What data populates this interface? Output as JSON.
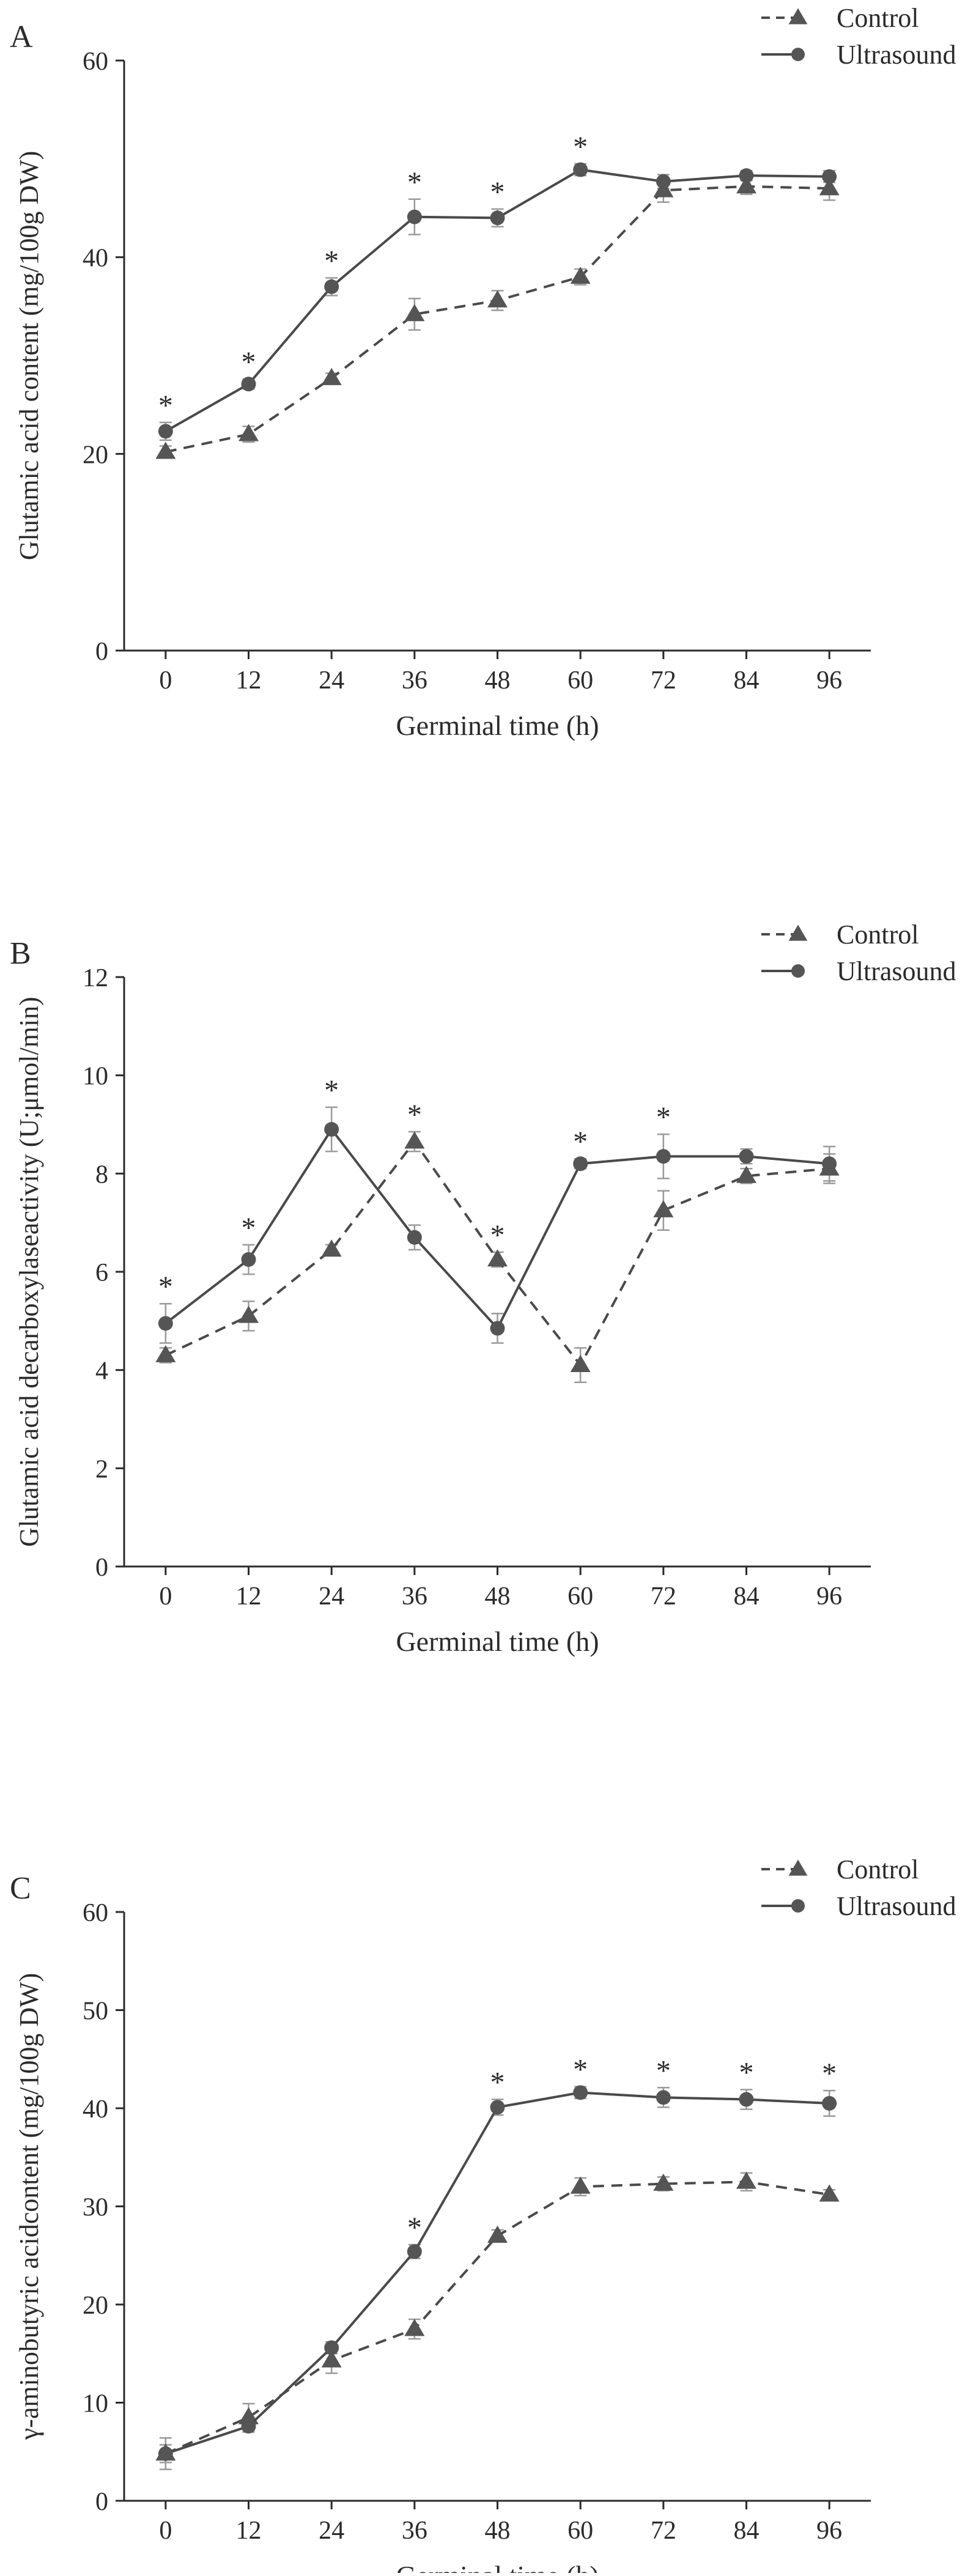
{
  "chart_data": [
    {
      "type": "line",
      "panel_label": "A",
      "xlabel": "Germinal time (h)",
      "ylabel": "Glutamic acid content (mg/100g DW)",
      "x": [
        0,
        12,
        24,
        36,
        48,
        60,
        72,
        84,
        96
      ],
      "x_tick_labels": [
        "0",
        "12",
        "24",
        "36",
        "48",
        "60",
        "72",
        "84",
        "96"
      ],
      "ylim": [
        0,
        60
      ],
      "y_ticks": [
        0,
        20,
        40,
        60
      ],
      "y_tick_labels": [
        "0",
        "20",
        "40",
        "60"
      ],
      "legend": [
        "Control",
        "Ultrasound"
      ],
      "legend_position": "top-right",
      "series": [
        {
          "name": "Control",
          "marker": "triangle",
          "line_style": "dashed",
          "values": [
            20.2,
            22.0,
            27.7,
            34.2,
            35.6,
            38.0,
            46.8,
            47.2,
            47.0
          ],
          "errors": [
            0.6,
            0.8,
            0.5,
            1.6,
            1.0,
            0.8,
            1.2,
            0.8,
            1.2
          ]
        },
        {
          "name": "Ultrasound",
          "marker": "circle",
          "line_style": "solid",
          "values": [
            22.3,
            27.1,
            37.0,
            44.1,
            44.0,
            48.9,
            47.7,
            48.3,
            48.2
          ],
          "errors": [
            0.9,
            0.5,
            0.9,
            1.8,
            0.9,
            0.6,
            0.7,
            0.5,
            0.6
          ]
        }
      ],
      "significance": [
        "*",
        "*",
        "*",
        "*",
        "*",
        "*",
        "",
        "",
        ""
      ]
    },
    {
      "type": "line",
      "panel_label": "B",
      "xlabel": "Germinal time (h)",
      "ylabel": "Glutamic acid decarboxylaseactivity (U;μmol/min)",
      "x": [
        0,
        12,
        24,
        36,
        48,
        60,
        72,
        84,
        96
      ],
      "x_tick_labels": [
        "0",
        "12",
        "24",
        "36",
        "48",
        "60",
        "72",
        "84",
        "96"
      ],
      "ylim": [
        0,
        12
      ],
      "y_ticks": [
        0,
        2,
        4,
        6,
        8,
        10,
        12
      ],
      "y_tick_labels": [
        "0",
        "2",
        "4",
        "6",
        "8",
        "10",
        "12"
      ],
      "legend": [
        "Control",
        "Ultrasound"
      ],
      "legend_position": "top-right",
      "series": [
        {
          "name": "Control",
          "marker": "triangle",
          "line_style": "dashed",
          "values": [
            4.3,
            5.1,
            6.45,
            8.65,
            6.25,
            4.1,
            7.25,
            7.95,
            8.1
          ],
          "errors": [
            0.15,
            0.3,
            0.1,
            0.2,
            0.15,
            0.35,
            0.4,
            0.15,
            0.3
          ]
        },
        {
          "name": "Ultrasound",
          "marker": "circle",
          "line_style": "solid",
          "values": [
            4.95,
            6.25,
            8.9,
            6.7,
            4.85,
            8.2,
            8.35,
            8.35,
            8.2
          ],
          "errors": [
            0.4,
            0.3,
            0.45,
            0.25,
            0.3,
            0.1,
            0.45,
            0.15,
            0.35
          ]
        }
      ],
      "significance": [
        "*",
        "*",
        "*",
        "*",
        "*",
        "*",
        "*",
        "",
        ""
      ]
    },
    {
      "type": "line",
      "panel_label": "C",
      "xlabel": "Germinal time (h)",
      "ylabel": "γ-aminobutyric acidcontent (mg/100g DW)",
      "x": [
        0,
        12,
        24,
        36,
        48,
        60,
        72,
        84,
        96
      ],
      "x_tick_labels": [
        "0",
        "12",
        "24",
        "36",
        "48",
        "60",
        "72",
        "84",
        "96"
      ],
      "ylim": [
        0,
        60
      ],
      "y_ticks": [
        0,
        10,
        20,
        30,
        40,
        50,
        60
      ],
      "y_tick_labels": [
        "0",
        "10",
        "20",
        "30",
        "40",
        "50",
        "60"
      ],
      "legend": [
        "Control",
        "Ultrasound"
      ],
      "legend_position": "top-right",
      "series": [
        {
          "name": "Control",
          "marker": "triangle",
          "line_style": "dashed",
          "values": [
            4.8,
            8.5,
            14.3,
            17.5,
            27.0,
            32.0,
            32.3,
            32.5,
            31.2
          ],
          "errors": [
            1.6,
            1.4,
            1.3,
            1.0,
            0.6,
            0.9,
            0.7,
            0.9,
            0.5
          ]
        },
        {
          "name": "Ultrasound",
          "marker": "circle",
          "line_style": "solid",
          "values": [
            4.8,
            7.6,
            15.6,
            25.4,
            40.1,
            41.6,
            41.1,
            40.9,
            40.5
          ],
          "errors": [
            0.9,
            0.6,
            0.6,
            0.7,
            0.8,
            0.6,
            1.0,
            1.0,
            1.3
          ]
        }
      ],
      "significance": [
        "",
        "",
        "",
        "*",
        "*",
        "*",
        "*",
        "*",
        "*"
      ]
    }
  ]
}
